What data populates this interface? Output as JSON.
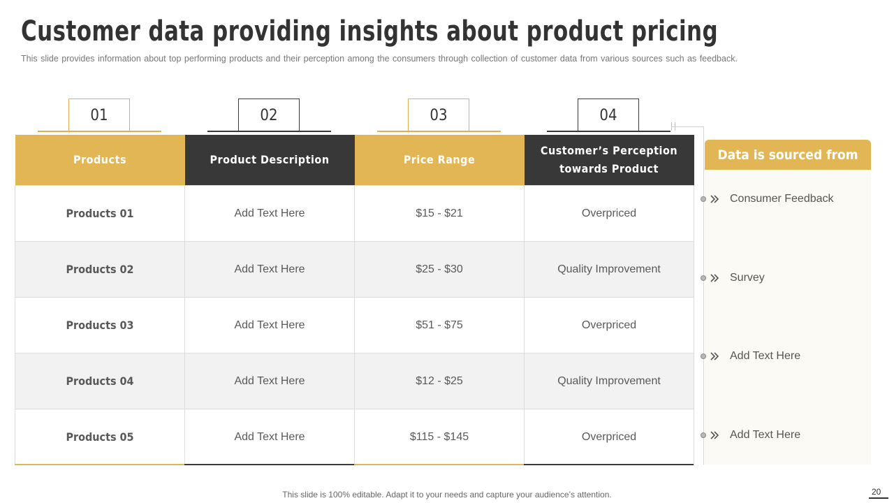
{
  "title": "Customer data providing insights about product pricing",
  "subtitle": "This slide provides information about top performing products and their perception among the consumers through collection of customer data from various sources such as feedback.",
  "tabs": [
    "01",
    "02",
    "03",
    "04"
  ],
  "table": {
    "headers": [
      "Products",
      "Product Description",
      "Price Range",
      "Customer’s Perception towards Product"
    ],
    "rows": [
      [
        "Products 01",
        "Add Text Here",
        "$15 -  $21",
        "Overpriced"
      ],
      [
        "Products 02",
        "Add Text Here",
        "$25 - $30",
        "Quality Improvement"
      ],
      [
        "Products 03",
        "Add Text Here",
        "$51 - $75",
        "Overpriced"
      ],
      [
        "Products 04",
        "Add Text Here",
        "$12 - $25",
        "Quality Improvement"
      ],
      [
        "Products 05",
        "Add Text Here",
        "$115 - $145",
        "Overpriced"
      ]
    ]
  },
  "sources": {
    "heading": "Data is sourced from",
    "items": [
      "Consumer Feedback",
      "Survey",
      "Add Text Here",
      "Add Text Here"
    ]
  },
  "footer": "This slide is 100% editable. Adapt it to your needs and capture your audience’s attention.",
  "page_number": "20",
  "colors": {
    "accent": "#e2b655",
    "dark": "#383838"
  }
}
